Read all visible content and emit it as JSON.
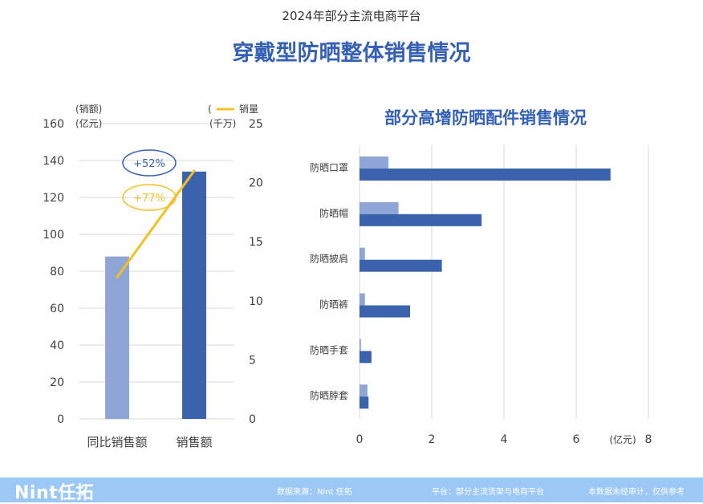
{
  "header": {
    "subtitle": "2024年部分主流电商平台",
    "title": "穿戴型防晒整体销售情况"
  },
  "colors": {
    "dark_blue": "#3a62ad",
    "light_blue": "#8fa5d6",
    "line": "#f5c021",
    "title": "#3461b6"
  },
  "chart_data": [
    {
      "type": "bar",
      "categories": [
        "同比销售额",
        "销售额"
      ],
      "values": [
        88,
        134
      ],
      "y_left": {
        "label_line1": "(销额)",
        "label_line2": "(亿元)",
        "ylim": [
          0,
          160
        ],
        "ticks": [
          0,
          20,
          40,
          60,
          80,
          100,
          120,
          140,
          160
        ]
      },
      "y_right": {
        "label_line1": "(",
        "label_line2": "(千万)",
        "ylim": [
          0,
          25
        ],
        "ticks": [
          0,
          5,
          10,
          15,
          20,
          25
        ]
      },
      "line_series": {
        "name": "销量",
        "values": [
          12,
          21
        ]
      },
      "annotations": [
        {
          "text": "+52%",
          "color": "#3461b6"
        },
        {
          "text": "+77%",
          "color": "#f5c021"
        }
      ],
      "grid": true
    },
    {
      "type": "bar",
      "orientation": "horizontal",
      "title": "部分高增防晒配件销售情况",
      "categories": [
        "防晒口罩",
        "防晒帽",
        "防晒披肩",
        "防晒裤",
        "防晒手套",
        "防晒脖套"
      ],
      "series": [
        {
          "values": [
            0.8,
            1.08,
            0.15,
            0.15,
            0.04,
            0.22
          ]
        },
        {
          "values": [
            6.95,
            3.38,
            2.28,
            1.4,
            0.33,
            0.25
          ]
        }
      ],
      "xlim": [
        0,
        8
      ],
      "x_ticks": [
        0,
        2,
        4,
        6,
        8
      ],
      "x_unit": "(亿元)",
      "grid": true
    }
  ],
  "footer": {
    "logo": "Nint任拓",
    "source": "数据来源：Nint 任拓",
    "platform": "平台：部分主流货架与电商平台",
    "note": "本数据未经审计，仅供参考"
  }
}
